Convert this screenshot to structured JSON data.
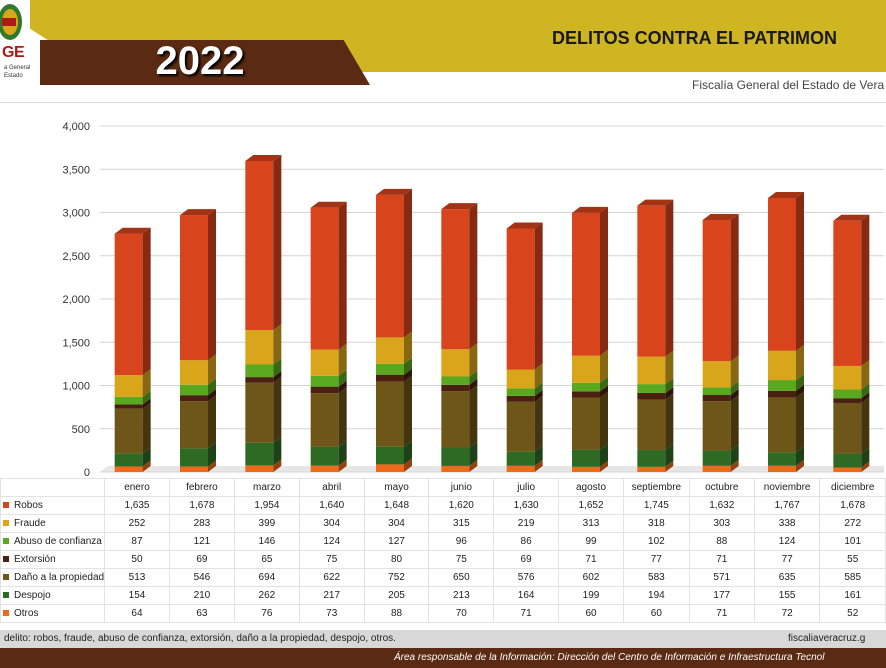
{
  "header": {
    "logo_text": "GE",
    "logo_small_1": "a General",
    "logo_small_2": "Estado",
    "year": "2022",
    "title": "DELITOS CONTRA EL PATRIMON",
    "subtitle": "Fiscalía General del Estado de Vera"
  },
  "footer": {
    "left_text": "delito: robos, fraude, abuso de confianza, extorsión, daño a la propiedad, despojo,  otros.",
    "right_text": "fiscaliaveracruz.g",
    "bottom_text": "Área responsable de la Información: Dirección del Centro de Información e Infraestructura Tecnol"
  },
  "colors": {
    "Robos": "#d8441c",
    "Fraude": "#d9a61b",
    "Abuso de confianza": "#5aa81f",
    "Extorsión": "#4a2010",
    "Daño a la propiedad": "#6e5518",
    "Despojo": "#2f6a25",
    "Otros": "#ef6a18"
  },
  "chart_data": {
    "type": "bar",
    "stacked": true,
    "title": "DELITOS CONTRA EL PATRIMON",
    "categories": [
      "enero",
      "febrero",
      "marzo",
      "abril",
      "mayo",
      "junio",
      "julio",
      "agosto",
      "septiembre",
      "octubre",
      "noviembre",
      "diciembre"
    ],
    "yticks": [
      "0",
      "500",
      "1,000",
      "1,500",
      "2,000",
      "2,500",
      "3,000",
      "3,500",
      "4,000"
    ],
    "ylim": [
      0,
      4000
    ],
    "grid": true,
    "series": [
      {
        "name": "Robos",
        "values": [
          1635,
          1678,
          1954,
          1640,
          1648,
          1620,
          1630,
          1652,
          1745,
          1632,
          1767,
          1678
        ],
        "labels": [
          "1,635",
          "1,678",
          "1,954",
          "1,640",
          "1,648",
          "1,620",
          "1,630",
          "1,652",
          "1,745",
          "1,632",
          "1,767",
          "1,678"
        ]
      },
      {
        "name": "Fraude",
        "values": [
          252,
          283,
          399,
          304,
          304,
          315,
          219,
          313,
          318,
          303,
          338,
          272
        ],
        "labels": [
          "252",
          "283",
          "399",
          "304",
          "304",
          "315",
          "219",
          "313",
          "318",
          "303",
          "338",
          "272"
        ]
      },
      {
        "name": "Abuso de confianza",
        "values": [
          87,
          121,
          146,
          124,
          127,
          96,
          86,
          99,
          102,
          88,
          124,
          101
        ],
        "labels": [
          "87",
          "121",
          "146",
          "124",
          "127",
          "96",
          "86",
          "99",
          "102",
          "88",
          "124",
          "101"
        ]
      },
      {
        "name": "Extorsión",
        "values": [
          50,
          69,
          65,
          75,
          80,
          75,
          69,
          71,
          77,
          71,
          77,
          55
        ],
        "labels": [
          "50",
          "69",
          "65",
          "75",
          "80",
          "75",
          "69",
          "71",
          "77",
          "71",
          "77",
          "55"
        ]
      },
      {
        "name": "Daño a la propiedad",
        "values": [
          513,
          546,
          694,
          622,
          752,
          650,
          576,
          602,
          583,
          571,
          635,
          585
        ],
        "labels": [
          "513",
          "546",
          "694",
          "622",
          "752",
          "650",
          "576",
          "602",
          "583",
          "571",
          "635",
          "585"
        ]
      },
      {
        "name": "Despojo",
        "values": [
          154,
          210,
          262,
          217,
          205,
          213,
          164,
          199,
          194,
          177,
          155,
          161
        ],
        "labels": [
          "154",
          "210",
          "262",
          "217",
          "205",
          "213",
          "164",
          "199",
          "194",
          "177",
          "155",
          "161"
        ]
      },
      {
        "name": "Otros",
        "values": [
          64,
          63,
          76,
          73,
          88,
          70,
          71,
          60,
          60,
          71,
          72,
          52
        ],
        "labels": [
          "64",
          "63",
          "76",
          "73",
          "88",
          "70",
          "71",
          "60",
          "60",
          "71",
          "72",
          "52"
        ]
      }
    ]
  }
}
